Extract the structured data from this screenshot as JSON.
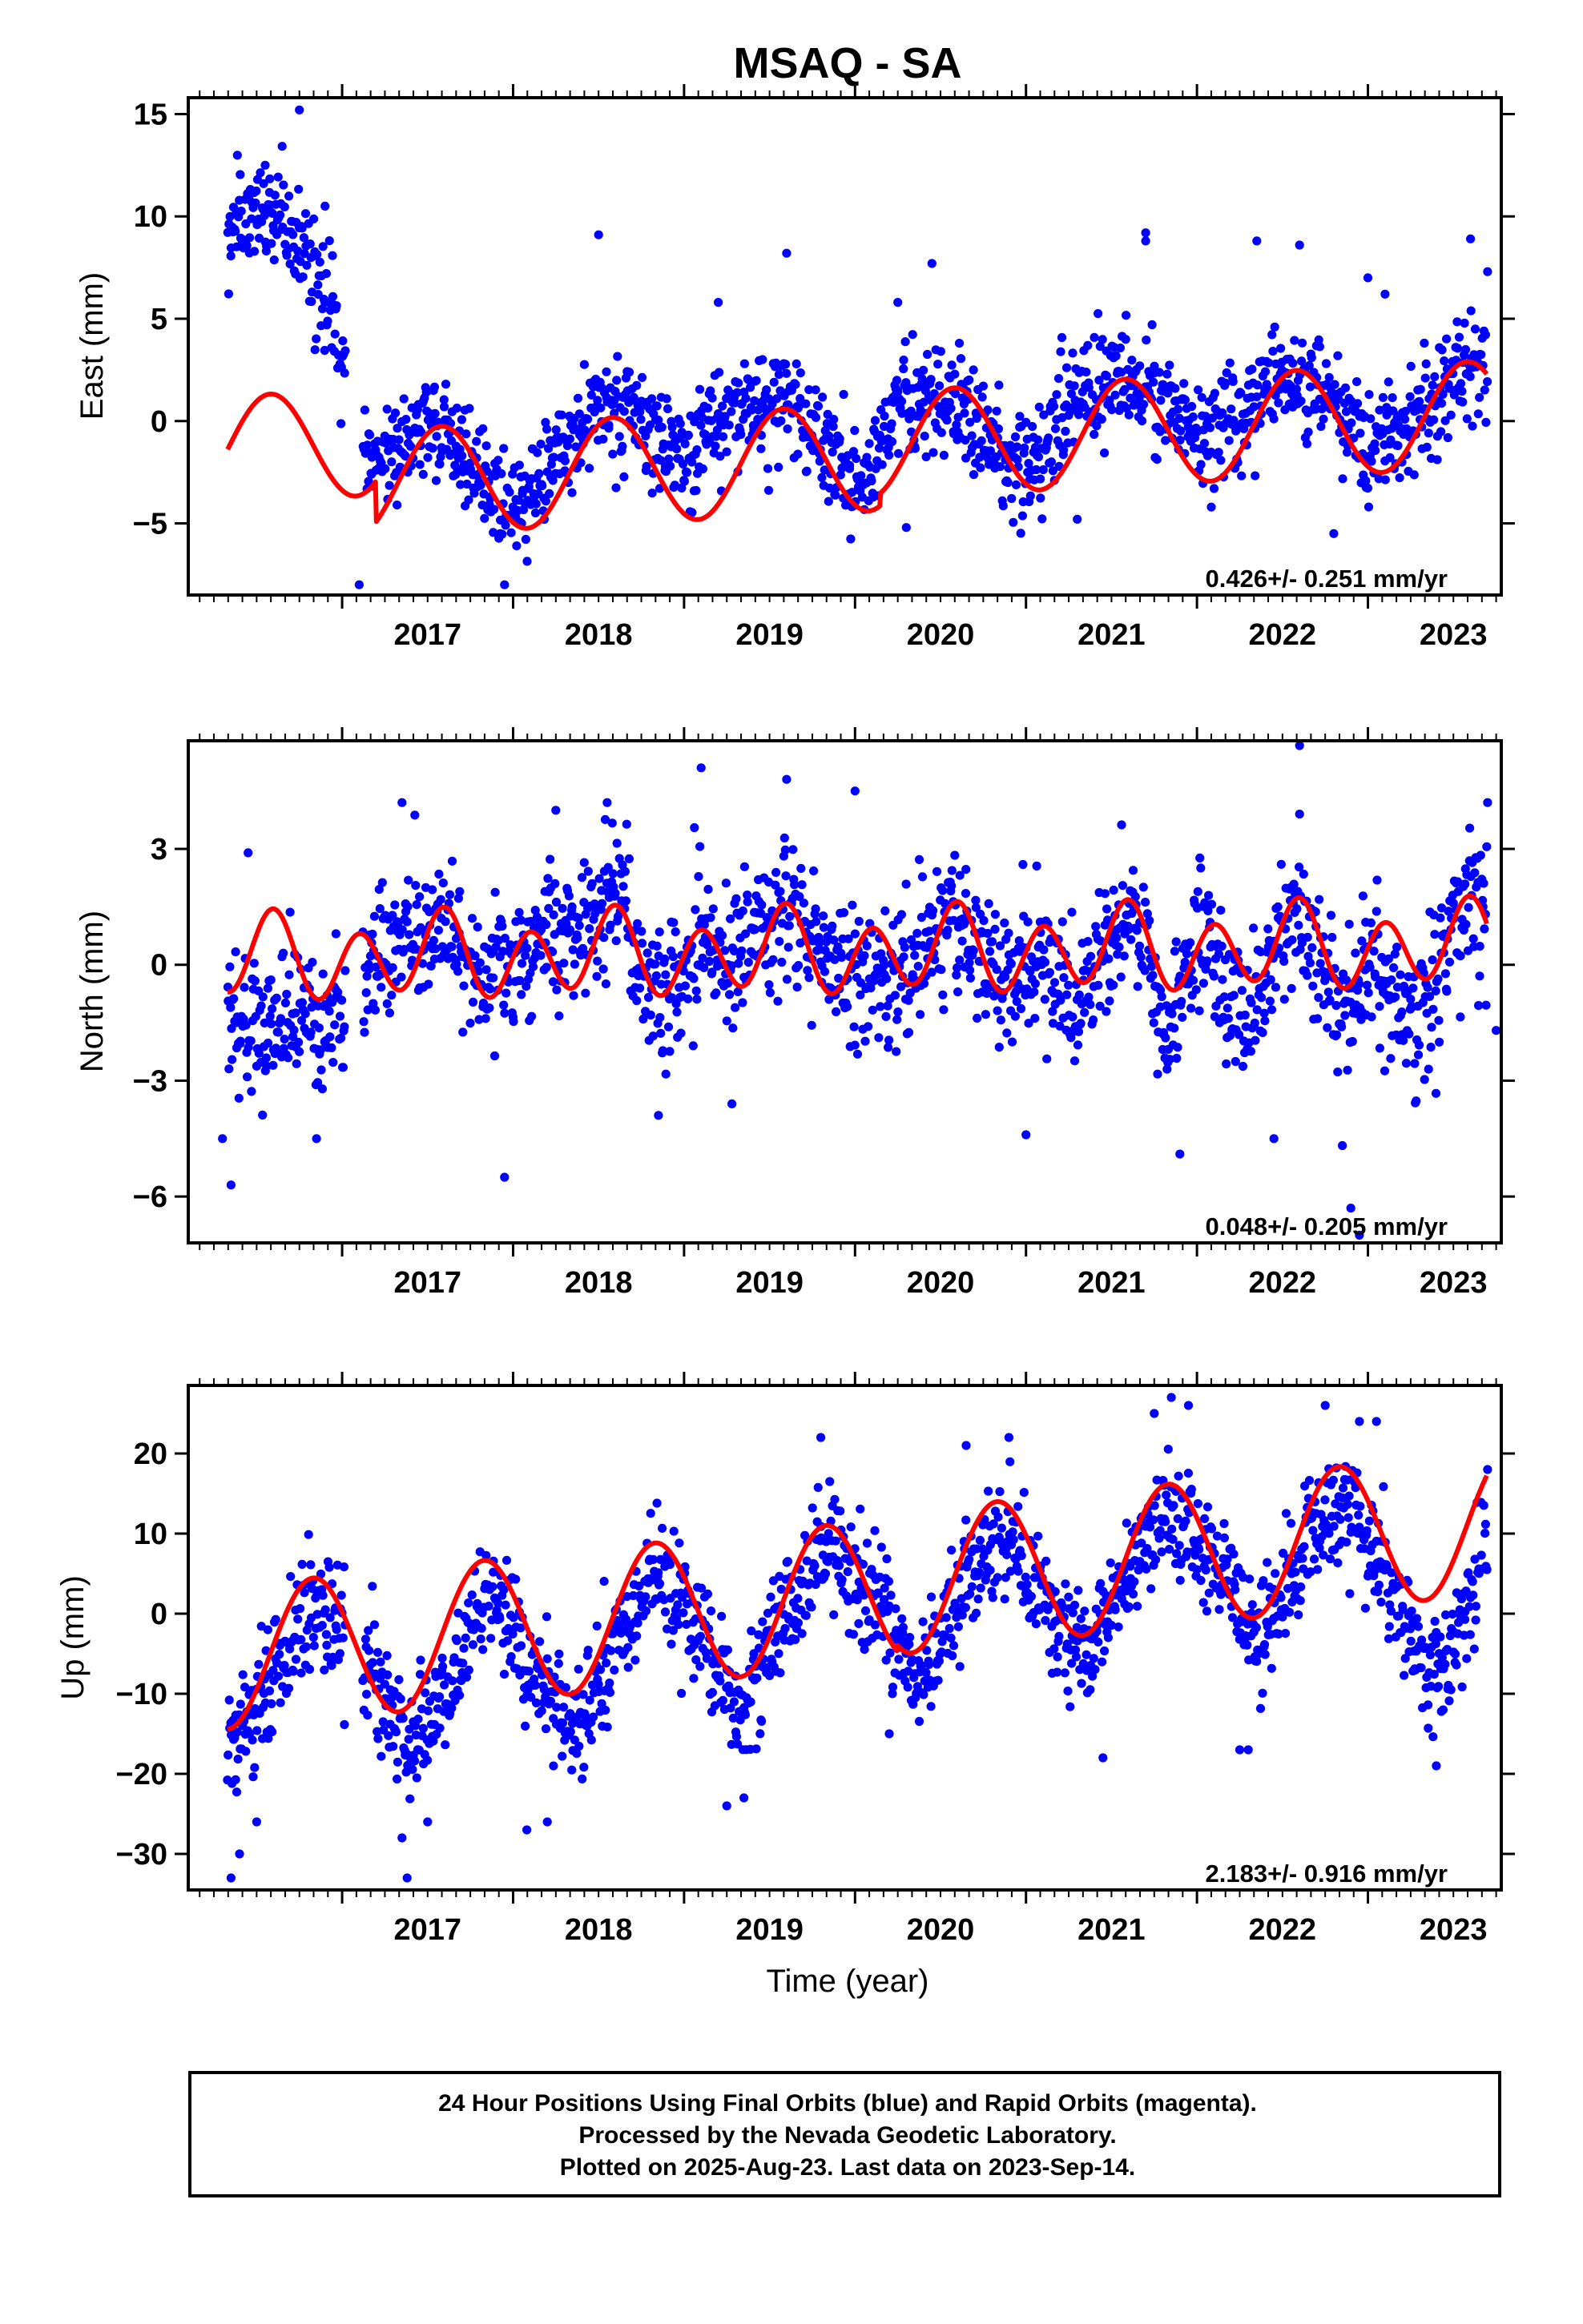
{
  "figure": {
    "title": "MSAQ - SA",
    "footer": {
      "line1": "24 Hour Positions Using Final Orbits (blue) and Rapid Orbits (magenta).",
      "line2": "Processed by the Nevada Geodetic Laboratory.",
      "line3": "Plotted on 2025-Aug-23. Last data on 2023-Sep-14."
    },
    "colors": {
      "final_orbits": "#0000ff",
      "fit_model": "#ff0000",
      "frame": "#000000"
    }
  },
  "chart_data": [
    {
      "type": "scatter",
      "panel": "east",
      "title": "MSAQ - SA",
      "xlabel": "",
      "ylabel": "East (mm)",
      "xlim": [
        2016.1,
        2023.78
      ],
      "ylim": [
        -8.5,
        15.8
      ],
      "x_ticks": [
        2017,
        2018,
        2019,
        2020,
        2021,
        2022,
        2023
      ],
      "y_ticks": [
        -5,
        0,
        5,
        10,
        15
      ],
      "y_tick_labels": [
        "−5",
        "0",
        "5",
        "10",
        "15"
      ],
      "annotation": "0.426+/- 0.251 mm/yr",
      "grid": false,
      "series": [
        {
          "kind": "points",
          "color": "#0000ff",
          "trend": [
            [
              2016.35,
              9.5
            ],
            [
              2016.55,
              10
            ],
            [
              2016.75,
              9
            ],
            [
              2016.95,
              5
            ],
            [
              2017.12,
              -2
            ],
            [
              2017.5,
              0
            ],
            [
              2017.75,
              -2
            ],
            [
              2018.0,
              -4.5
            ],
            [
              2018.25,
              -2
            ],
            [
              2018.5,
              1
            ],
            [
              2018.75,
              0
            ],
            [
              2019.0,
              -2
            ],
            [
              2019.25,
              0.5
            ],
            [
              2019.6,
              1
            ],
            [
              2019.75,
              -0.5
            ],
            [
              2020.0,
              -3
            ],
            [
              2020.25,
              1
            ],
            [
              2020.5,
              1.5
            ],
            [
              2020.75,
              -0.5
            ],
            [
              2021.0,
              -2.5
            ],
            [
              2021.25,
              0.5
            ],
            [
              2021.5,
              2
            ],
            [
              2021.75,
              1.5
            ],
            [
              2022.0,
              -1
            ],
            [
              2022.25,
              0
            ],
            [
              2022.5,
              2.5
            ],
            [
              2022.75,
              1.5
            ],
            [
              2023.0,
              -1.5
            ],
            [
              2023.25,
              0
            ],
            [
              2023.55,
              2.5
            ],
            [
              2023.7,
              2.5
            ]
          ],
          "scatter_sd": 1.3,
          "outliers": [
            [
              2016.75,
              15.2
            ],
            [
              2016.55,
              12.5
            ],
            [
              2016.9,
              10.5
            ],
            [
              2017.1,
              -8
            ],
            [
              2017.95,
              -8
            ],
            [
              2018.5,
              9.1
            ],
            [
              2019.2,
              5.8
            ],
            [
              2019.6,
              8.2
            ],
            [
              2020.25,
              5.8
            ],
            [
              2020.45,
              7.7
            ],
            [
              2021.7,
              9.2
            ],
            [
              2021.7,
              8.8
            ],
            [
              2022.35,
              8.8
            ],
            [
              2022.6,
              8.6
            ],
            [
              2023.0,
              7.0
            ],
            [
              2023.1,
              6.2
            ],
            [
              2023.6,
              8.9
            ],
            [
              2023.7,
              7.3
            ],
            [
              2020.3,
              -5.2
            ],
            [
              2022.8,
              -5.5
            ],
            [
              2021.3,
              -4.8
            ]
          ]
        },
        {
          "kind": "model",
          "color": "#ff0000",
          "offset": -1.4,
          "rate": 0.426,
          "t0": 2016.3,
          "annual_amp": 2.6,
          "annual_peak": 2020.58,
          "jumps": [
            [
              2017.2,
              -2.0
            ],
            [
              2020.15,
              0.6
            ]
          ]
        }
      ]
    },
    {
      "type": "scatter",
      "panel": "north",
      "xlabel": "",
      "ylabel": "North (mm)",
      "xlim": [
        2016.1,
        2023.78
      ],
      "ylim": [
        -7.2,
        5.8
      ],
      "x_ticks": [
        2017,
        2018,
        2019,
        2020,
        2021,
        2022,
        2023
      ],
      "y_ticks": [
        -6,
        -3,
        0,
        3
      ],
      "y_tick_labels": [
        "−6",
        "−3",
        "0",
        "3"
      ],
      "annotation": "0.048+/- 0.205 mm/yr",
      "grid": false,
      "series": [
        {
          "kind": "points",
          "color": "#0000ff",
          "trend": [
            [
              2016.35,
              -1.5
            ],
            [
              2016.8,
              -1.5
            ],
            [
              2017.0,
              -1.2
            ],
            [
              2017.2,
              0.5
            ],
            [
              2017.6,
              1.2
            ],
            [
              2017.8,
              -0.5
            ],
            [
              2018.2,
              0.5
            ],
            [
              2018.6,
              1.8
            ],
            [
              2018.85,
              -1.0
            ],
            [
              2019.1,
              0.5
            ],
            [
              2019.4,
              0.5
            ],
            [
              2019.6,
              1.5
            ],
            [
              2019.85,
              0
            ],
            [
              2020.0,
              -0.5
            ],
            [
              2020.3,
              0
            ],
            [
              2020.55,
              1.2
            ],
            [
              2020.85,
              -0.5
            ],
            [
              2021.0,
              0
            ],
            [
              2021.3,
              -1.0
            ],
            [
              2021.6,
              1.8
            ],
            [
              2021.85,
              -1.8
            ],
            [
              2022.0,
              0.5
            ],
            [
              2022.3,
              -1.2
            ],
            [
              2022.6,
              1.5
            ],
            [
              2022.85,
              -1.5
            ],
            [
              2023.0,
              0
            ],
            [
              2023.3,
              -1.5
            ],
            [
              2023.6,
              1.8
            ],
            [
              2023.7,
              1.2
            ]
          ],
          "scatter_sd": 0.9,
          "outliers": [
            [
              2016.3,
              -4.5
            ],
            [
              2016.35,
              -5.7
            ],
            [
              2016.45,
              2.9
            ],
            [
              2016.85,
              -4.5
            ],
            [
              2017.35,
              4.2
            ],
            [
              2017.95,
              -5.5
            ],
            [
              2018.25,
              4.0
            ],
            [
              2018.55,
              4.2
            ],
            [
              2019.1,
              5.1
            ],
            [
              2019.6,
              4.8
            ],
            [
              2020.0,
              4.5
            ],
            [
              2019.28,
              -3.6
            ],
            [
              2018.85,
              -3.9
            ],
            [
              2021.0,
              -4.4
            ],
            [
              2021.9,
              -4.9
            ],
            [
              2022.45,
              -4.5
            ],
            [
              2022.6,
              5.7
            ],
            [
              2022.6,
              3.9
            ],
            [
              2022.9,
              -6.3
            ],
            [
              2022.95,
              -7.0
            ],
            [
              2023.7,
              4.2
            ],
            [
              2023.75,
              -1.7
            ]
          ]
        },
        {
          "kind": "model",
          "color": "#ff0000",
          "offset": 0.15,
          "rate": 0.048,
          "t0": 2016.3,
          "annual_amp": 0.35,
          "annual_peak": 2016.55,
          "semi_amp": 0.95,
          "semi_peak": 2016.6,
          "jumps": []
        }
      ]
    },
    {
      "type": "scatter",
      "panel": "up",
      "xlabel": "Time (year)",
      "ylabel": "Up (mm)",
      "xlim": [
        2016.1,
        2023.78
      ],
      "ylim": [
        -34.5,
        28.5
      ],
      "x_ticks": [
        2017,
        2018,
        2019,
        2020,
        2021,
        2022,
        2023
      ],
      "y_ticks": [
        -30,
        -20,
        -10,
        0,
        10,
        20
      ],
      "y_tick_labels": [
        "−30",
        "−20",
        "−10",
        "0",
        "10",
        "20"
      ],
      "annotation": "2.183+/- 0.916 mm/yr",
      "grid": false,
      "series": [
        {
          "kind": "points",
          "color": "#0000ff",
          "trend": [
            [
              2016.35,
              -17
            ],
            [
              2016.6,
              -8
            ],
            [
              2016.85,
              2
            ],
            [
              2017.1,
              -5
            ],
            [
              2017.4,
              -17
            ],
            [
              2017.65,
              -8
            ],
            [
              2017.85,
              4
            ],
            [
              2018.1,
              -6
            ],
            [
              2018.35,
              -15
            ],
            [
              2018.6,
              -5
            ],
            [
              2018.85,
              6
            ],
            [
              2019.1,
              -2
            ],
            [
              2019.35,
              -12
            ],
            [
              2019.6,
              0
            ],
            [
              2019.85,
              10
            ],
            [
              2020.1,
              2
            ],
            [
              2020.35,
              -8
            ],
            [
              2020.6,
              2
            ],
            [
              2020.85,
              10
            ],
            [
              2021.1,
              3
            ],
            [
              2021.35,
              -6
            ],
            [
              2021.6,
              5
            ],
            [
              2021.85,
              13
            ],
            [
              2022.1,
              6
            ],
            [
              2022.35,
              -3
            ],
            [
              2022.6,
              6
            ],
            [
              2022.85,
              15
            ],
            [
              2023.1,
              5
            ],
            [
              2023.35,
              -8
            ],
            [
              2023.55,
              -3
            ],
            [
              2023.72,
              12
            ]
          ],
          "scatter_sd": 3.6,
          "outliers": [
            [
              2016.35,
              -33
            ],
            [
              2016.4,
              -30
            ],
            [
              2016.5,
              -26
            ],
            [
              2017.35,
              -28
            ],
            [
              2017.38,
              -33
            ],
            [
              2017.5,
              -26
            ],
            [
              2018.08,
              -27
            ],
            [
              2018.2,
              -26
            ],
            [
              2019.25,
              -24
            ],
            [
              2019.35,
              -23
            ],
            [
              2019.8,
              22
            ],
            [
              2020.2,
              -15
            ],
            [
              2020.65,
              21
            ],
            [
              2020.9,
              22
            ],
            [
              2021.45,
              -18
            ],
            [
              2021.75,
              25
            ],
            [
              2021.85,
              27
            ],
            [
              2021.95,
              26
            ],
            [
              2022.25,
              -17
            ],
            [
              2022.3,
              -17
            ],
            [
              2022.75,
              26
            ],
            [
              2022.95,
              24
            ],
            [
              2023.05,
              24
            ],
            [
              2023.4,
              -19
            ],
            [
              2023.7,
              18
            ]
          ]
        },
        {
          "kind": "model",
          "color": "#ff0000",
          "offset": -5.6,
          "rate": 2.183,
          "t0": 2016.3,
          "annual_amp": 8.9,
          "annual_peak": 2016.83,
          "jumps": [
            [
              2020.25,
              0.8
            ]
          ]
        }
      ]
    }
  ]
}
